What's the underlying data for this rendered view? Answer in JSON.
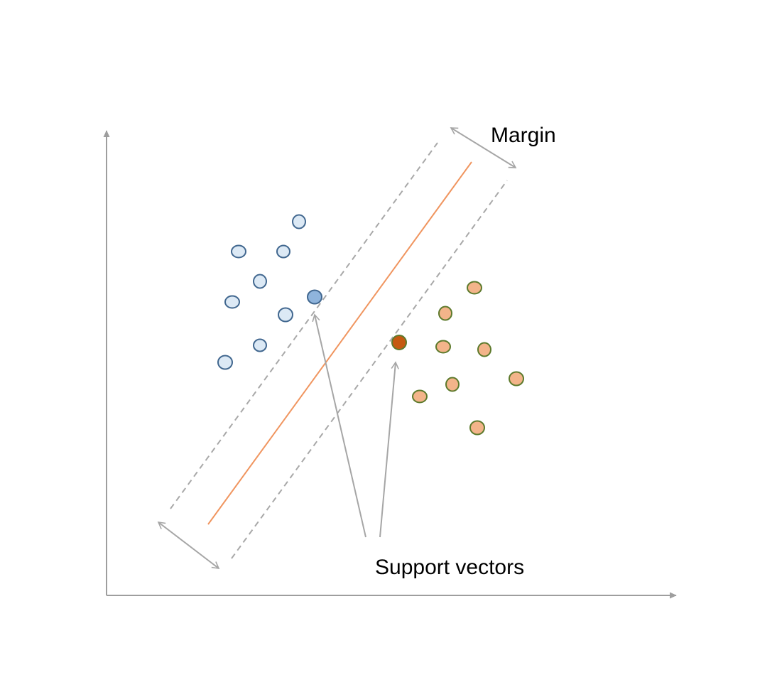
{
  "diagram": {
    "labels": {
      "margin": "Margin",
      "support_vectors": "Support vectors"
    },
    "colors": {
      "axis": "#9e9e9e",
      "hyperplane": "#f0955f",
      "margin_line": "#a8a8a8",
      "annotation_arrow": "#a6a6a6",
      "class_a_fill": "#dce9f5",
      "class_a_stroke": "#41678f",
      "class_a_support_fill": "#8fb4dc",
      "class_b_fill": "#f3b48a",
      "class_b_stroke": "#5d7a2c",
      "class_b_support_fill": "#c55a11"
    }
  }
}
